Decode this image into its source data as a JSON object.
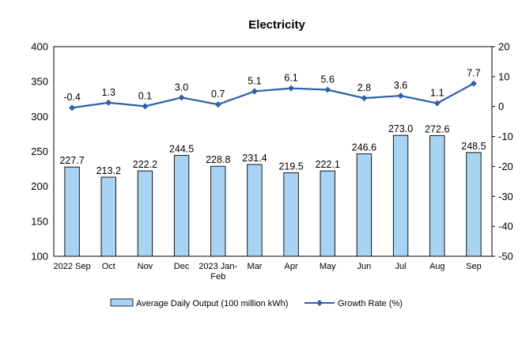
{
  "chart_data": {
    "type": "bar",
    "title": "Electricity",
    "categories": [
      [
        "2022 Sep"
      ],
      [
        "Oct"
      ],
      [
        "Nov"
      ],
      [
        "Dec"
      ],
      [
        "2023 Jan-",
        "Feb"
      ],
      [
        "Mar"
      ],
      [
        "Apr"
      ],
      [
        "May"
      ],
      [
        "Jun"
      ],
      [
        "Jul"
      ],
      [
        "Aug"
      ],
      [
        "Sep"
      ]
    ],
    "series": [
      {
        "name": "Average Daily Output (100 million kWh)",
        "type": "bar",
        "axis": "left",
        "values": [
          227.7,
          213.2,
          222.2,
          244.5,
          228.8,
          231.4,
          219.5,
          222.1,
          246.6,
          273.0,
          272.6,
          248.5
        ],
        "labels": [
          "227.7",
          "213.2",
          "222.2",
          "244.5",
          "228.8",
          "231.4",
          "219.5",
          "222.1",
          "246.6",
          "273.0",
          "272.6",
          "248.5"
        ],
        "color": "#a8d3f2",
        "border_color": "#000000"
      },
      {
        "name": "Growth Rate (%)",
        "type": "line",
        "axis": "right",
        "values": [
          -0.4,
          1.3,
          0.1,
          3.0,
          0.7,
          5.1,
          6.1,
          5.6,
          2.8,
          3.6,
          1.1,
          7.7
        ],
        "labels": [
          "-0.4",
          "1.3",
          "0.1",
          "3.0",
          "0.7",
          "5.1",
          "6.1",
          "5.6",
          "2.8",
          "3.6",
          "1.1",
          "7.7"
        ],
        "color": "#2e5fa8",
        "marker": "diamond"
      }
    ],
    "y_left": {
      "min": 100,
      "max": 400,
      "ticks": [
        "100",
        "150",
        "200",
        "250",
        "300",
        "350",
        "400"
      ]
    },
    "y_right": {
      "min": -50,
      "max": 20,
      "ticks": [
        "-50",
        "-40",
        "-30",
        "-20",
        "-10",
        "0",
        "10",
        "20"
      ]
    },
    "grid": false,
    "legend_position": "bottom"
  }
}
